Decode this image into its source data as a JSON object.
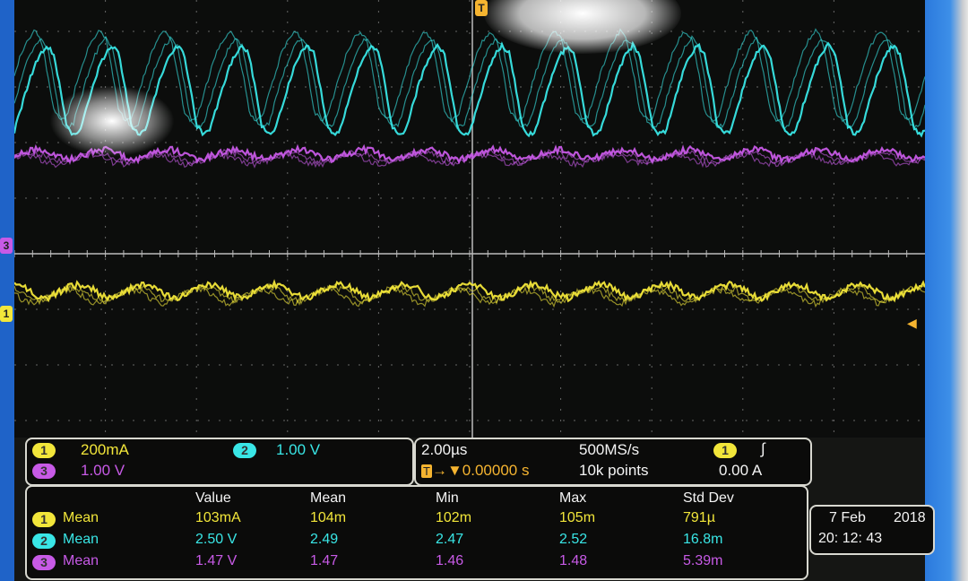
{
  "channels": {
    "ch1": {
      "label": "1",
      "scale": "200mA",
      "color": "#f2e63a"
    },
    "ch2": {
      "label": "2",
      "scale": "1.00 V",
      "color": "#39e6e6"
    },
    "ch3": {
      "label": "3",
      "scale": "1.00 V",
      "color": "#c75ae6"
    }
  },
  "timebase": {
    "time_per_div": "2.00µs",
    "trigger_delay": "0.00000 s",
    "sample_rate": "500MS/s",
    "record_length": "10k points",
    "trigger_source": "1",
    "trigger_slope_icon": "rising-edge-icon",
    "trigger_level": "0.00 A"
  },
  "measurements": {
    "headers": [
      "Value",
      "Mean",
      "Min",
      "Max",
      "Std Dev"
    ],
    "rows": [
      {
        "ch": "1",
        "name": "Mean",
        "cells": [
          "103mA",
          "104m",
          "102m",
          "105m",
          "791µ"
        ]
      },
      {
        "ch": "2",
        "name": "Mean",
        "cells": [
          "2.50 V",
          "2.49",
          "2.47",
          "2.52",
          "16.8m"
        ]
      },
      {
        "ch": "3",
        "name": "Mean",
        "cells": [
          "1.47 V",
          "1.47",
          "1.46",
          "1.48",
          "5.39m"
        ]
      }
    ]
  },
  "datetime": {
    "date": "7 Feb",
    "year": "2018",
    "time": "20: 12: 43"
  },
  "markers": {
    "ch1": "1",
    "ch3": "3",
    "trigger": "T"
  },
  "chart_data": {
    "type": "line",
    "xlabel": "",
    "ylabel": "",
    "x_units": "µs",
    "xlim": [
      -10,
      10
    ],
    "grid": true,
    "divisions": {
      "x": 10,
      "y": 8
    },
    "series": [
      {
        "channel": "2",
        "color": "#39e6e6",
        "period_us": 1.43,
        "y_divs_one_period": [
          2.2,
          2.6,
          3.0,
          3.35,
          3.6,
          3.75,
          3.6,
          3.0,
          2.3,
          2.15,
          2.2
        ]
      },
      {
        "channel": "3",
        "color": "#c75ae6",
        "period_us": 1.43,
        "y_divs_one_period": [
          1.75,
          1.8,
          1.85,
          1.88,
          1.85,
          1.78,
          1.72,
          1.7,
          1.75
        ]
      },
      {
        "channel": "1",
        "color": "#f2e63a",
        "period_us": 1.43,
        "y_divs_one_period": [
          -0.55,
          -0.6,
          -0.75,
          -0.8,
          -0.7,
          -0.6,
          -0.55
        ]
      }
    ]
  }
}
